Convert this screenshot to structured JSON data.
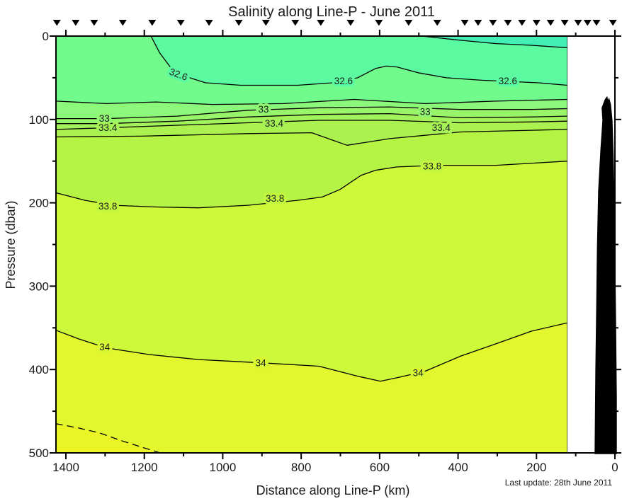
{
  "title": "Salinity along Line-P - June 2011",
  "xlabel": "Distance along Line-P (km)",
  "ylabel": "Pressure (dbar)",
  "update_note": "Last update: 28th June 2011",
  "chart_data": {
    "type": "contour-section",
    "title": "Salinity along Line-P - June 2011",
    "xlabel": "Distance along Line-P (km)",
    "ylabel": "Pressure (dbar)",
    "x_axis": {
      "major_ticks": [
        1400,
        1200,
        1000,
        800,
        600,
        400,
        200,
        0
      ],
      "minor_ticks": [
        1300,
        1100,
        900,
        700,
        500,
        300,
        100
      ],
      "range_km": [
        1425,
        0
      ],
      "reversed": true
    },
    "y_axis": {
      "major_ticks": [
        0,
        100,
        200,
        300,
        400,
        500
      ],
      "minor_ticks": [
        50,
        150,
        250,
        350,
        450
      ],
      "range_dbar": [
        0,
        500
      ],
      "increases_downward": true
    },
    "data_extent_km": [
      1425,
      121
    ],
    "station_markers_km": [
      1423,
      1375,
      1328,
      1255,
      1180,
      1107,
      1035,
      959,
      890,
      815,
      750,
      674,
      602,
      526,
      453,
      383,
      349,
      311,
      273,
      237,
      200,
      164,
      128,
      94,
      70,
      47,
      5
    ],
    "bands": {
      "base": "#5CFAA0",
      "above_324": "#44EFB5",
      "below": [
        {
          "level": 32.6,
          "color": "#72FB8D"
        },
        {
          "level": 32.8,
          "color": "#8CF87B"
        },
        {
          "level": 33,
          "color": "#98F56A"
        },
        {
          "level": 33.2,
          "color": "#A2F25C"
        },
        {
          "level": 33.4,
          "color": "#ABF150"
        },
        {
          "level": 33.6,
          "color": "#B5F444"
        },
        {
          "level": 33.8,
          "color": "#CEF93A"
        },
        {
          "level": 34,
          "color": "#E2F72D"
        },
        {
          "level": 34.2,
          "color": "#EBF525"
        }
      ]
    },
    "contours": [
      {
        "level": 32.4,
        "style": "solid",
        "points": [
          [
            493,
            0
          ],
          [
            394,
            5
          ],
          [
            303,
            9
          ],
          [
            213,
            11
          ],
          [
            121,
            14
          ]
        ]
      },
      {
        "level": 32.6,
        "style": "solid",
        "points": [
          [
            1183,
            0
          ],
          [
            1161,
            20
          ],
          [
            1134,
            37
          ],
          [
            1098,
            48
          ],
          [
            1044,
            56
          ],
          [
            954,
            59
          ],
          [
            809,
            59
          ],
          [
            719,
            56
          ],
          [
            656,
            50
          ],
          [
            611,
            39
          ],
          [
            583,
            36
          ],
          [
            556,
            37
          ],
          [
            502,
            44
          ],
          [
            430,
            50
          ],
          [
            340,
            53
          ],
          [
            195,
            56
          ],
          [
            121,
            59
          ]
        ]
      },
      {
        "level": 32.8,
        "style": "solid",
        "points": [
          [
            1425,
            78
          ],
          [
            1297,
            81
          ],
          [
            1170,
            79
          ],
          [
            1026,
            82
          ],
          [
            845,
            81
          ],
          [
            665,
            76
          ],
          [
            484,
            81
          ],
          [
            303,
            78
          ],
          [
            121,
            76
          ]
        ]
      },
      {
        "level": 33,
        "style": "solid",
        "points": [
          [
            1425,
            99
          ],
          [
            1297,
            99
          ],
          [
            1116,
            96
          ],
          [
            936,
            89
          ],
          [
            755,
            86
          ],
          [
            574,
            85
          ],
          [
            394,
            88
          ],
          [
            213,
            88
          ],
          [
            121,
            87
          ]
        ]
      },
      {
        "level": 33.2,
        "style": "solid",
        "points": [
          [
            1425,
            105
          ],
          [
            1297,
            105
          ],
          [
            1116,
            102
          ],
          [
            936,
            97
          ],
          [
            755,
            94
          ],
          [
            574,
            93
          ],
          [
            394,
            98
          ],
          [
            213,
            97
          ],
          [
            121,
            96
          ]
        ]
      },
      {
        "level": 33.4,
        "style": "solid",
        "points": [
          [
            1425,
            112
          ],
          [
            1297,
            110
          ],
          [
            1116,
            107
          ],
          [
            936,
            104
          ],
          [
            755,
            101
          ],
          [
            574,
            101
          ],
          [
            394,
            104
          ],
          [
            213,
            103
          ],
          [
            121,
            102
          ]
        ]
      },
      {
        "level": 33.6,
        "style": "solid",
        "points": [
          [
            1425,
            121
          ],
          [
            1207,
            120
          ],
          [
            936,
            117
          ],
          [
            773,
            116
          ],
          [
            683,
            131
          ],
          [
            574,
            123
          ],
          [
            394,
            115
          ],
          [
            213,
            113
          ],
          [
            121,
            112
          ]
        ]
      },
      {
        "level": 33.8,
        "style": "solid",
        "points": [
          [
            1425,
            188
          ],
          [
            1351,
            197
          ],
          [
            1279,
            203
          ],
          [
            1170,
            205
          ],
          [
            1062,
            206
          ],
          [
            936,
            203
          ],
          [
            809,
            197
          ],
          [
            746,
            193
          ],
          [
            701,
            184
          ],
          [
            647,
            167
          ],
          [
            611,
            161
          ],
          [
            556,
            157
          ],
          [
            448,
            155
          ],
          [
            303,
            155
          ],
          [
            195,
            152
          ],
          [
            121,
            150
          ]
        ]
      },
      {
        "level": 34,
        "style": "solid",
        "points": [
          [
            1425,
            353
          ],
          [
            1369,
            363
          ],
          [
            1297,
            374
          ],
          [
            1188,
            382
          ],
          [
            1062,
            388
          ],
          [
            900,
            392
          ],
          [
            755,
            396
          ],
          [
            656,
            408
          ],
          [
            598,
            414
          ],
          [
            547,
            409
          ],
          [
            484,
            402
          ],
          [
            394,
            384
          ],
          [
            303,
            369
          ],
          [
            213,
            354
          ],
          [
            121,
            344
          ]
        ]
      },
      {
        "level": 34.2,
        "style": "dashed",
        "points": [
          [
            1425,
            465
          ],
          [
            1369,
            470
          ],
          [
            1315,
            476
          ],
          [
            1261,
            485
          ],
          [
            1207,
            493
          ],
          [
            1152,
            501
          ]
        ]
      }
    ],
    "contour_labels": [
      {
        "text": "32.6",
        "km": 1113,
        "dbar": 46,
        "rot": 20,
        "halo": "#5CFAA0"
      },
      {
        "text": "32.6",
        "km": 692,
        "dbar": 54,
        "rot": 0,
        "halo": "#5CFAA0"
      },
      {
        "text": "32.6",
        "km": 273,
        "dbar": 54,
        "rot": 0,
        "halo": "#5CFAA0"
      },
      {
        "text": "33",
        "km": 1302,
        "dbar": 99,
        "rot": 0,
        "halo": "#92F672"
      },
      {
        "text": "33",
        "km": 896,
        "dbar": 88,
        "rot": 0,
        "halo": "#92F672"
      },
      {
        "text": "33",
        "km": 484,
        "dbar": 91,
        "rot": 0,
        "halo": "#92F672"
      },
      {
        "text": "33.4",
        "km": 1293,
        "dbar": 110,
        "rot": 0,
        "halo": "#A6F156"
      },
      {
        "text": "33.4",
        "km": 869,
        "dbar": 105,
        "rot": 0,
        "halo": "#A6F156"
      },
      {
        "text": "33.4",
        "km": 443,
        "dbar": 110,
        "rot": 0,
        "halo": "#A6F156"
      },
      {
        "text": "33.8",
        "km": 1293,
        "dbar": 204,
        "rot": 0,
        "halo": "#C2F63F"
      },
      {
        "text": "33.8",
        "km": 867,
        "dbar": 195,
        "rot": 0,
        "halo": "#C2F63F"
      },
      {
        "text": "33.8",
        "km": 466,
        "dbar": 156,
        "rot": 0,
        "halo": "#C2F63F"
      },
      {
        "text": "34",
        "km": 1301,
        "dbar": 373,
        "rot": 0,
        "halo": "#D8F833"
      },
      {
        "text": "34",
        "km": 903,
        "dbar": 392,
        "rot": 0,
        "halo": "#D8F833"
      },
      {
        "text": "34",
        "km": 502,
        "dbar": 404,
        "rot": 0,
        "halo": "#D8F833"
      }
    ],
    "bathymetry_km_dbar": [
      [
        51,
        501
      ],
      [
        49,
        398
      ],
      [
        47,
        330
      ],
      [
        45,
        254
      ],
      [
        42,
        186
      ],
      [
        36,
        135
      ],
      [
        31,
        101
      ],
      [
        33,
        86
      ],
      [
        25,
        76
      ],
      [
        20,
        73
      ],
      [
        18,
        78
      ],
      [
        15,
        75
      ],
      [
        11,
        82
      ],
      [
        7,
        101
      ],
      [
        4,
        144
      ],
      [
        2,
        194
      ],
      [
        0,
        262
      ],
      [
        -2,
        339
      ],
      [
        -4,
        432
      ],
      [
        -4,
        501
      ]
    ],
    "line_color": "#000000",
    "grid": false,
    "legend": "none"
  }
}
